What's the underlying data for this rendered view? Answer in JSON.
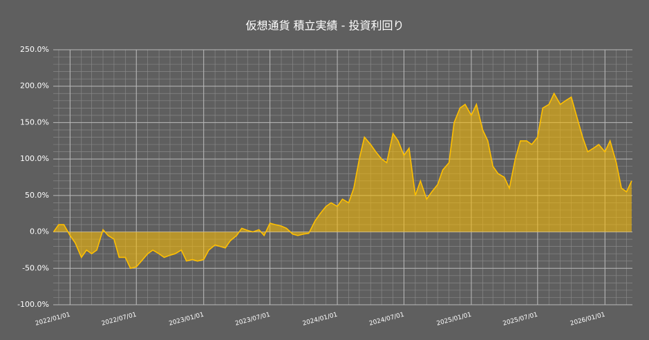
{
  "chart_data": {
    "type": "area",
    "title": "仮想通貨 積立実績 - 投資利回り",
    "color": "#ffc000",
    "fill": "rgba(255,192,0,0.55)",
    "grid": true,
    "xlim": [
      "2021/11/16",
      "2026/03/17"
    ],
    "xticks": [
      "2022/01/01",
      "2022/07/01",
      "2023/01/01",
      "2023/07/01",
      "2024/01/01",
      "2024/07/01",
      "2025/01/01",
      "2025/07/01",
      "2026/01/01"
    ],
    "ylim": [
      -100,
      250
    ],
    "yticks": [
      {
        "value": -100,
        "label": "-100.0%"
      },
      {
        "value": -50,
        "label": "-50.0%"
      },
      {
        "value": 0,
        "label": "0.0%"
      },
      {
        "value": 50,
        "label": "50.0%"
      },
      {
        "value": 100,
        "label": "100.0%"
      },
      {
        "value": 150,
        "label": "150.0%"
      },
      {
        "value": 200,
        "label": "200.0%"
      },
      {
        "value": 250,
        "label": "250.0%"
      }
    ],
    "x": [
      "2021/11/17",
      "2021/12/01",
      "2021/12/15",
      "2022/01/01",
      "2022/01/15",
      "2022/02/01",
      "2022/02/15",
      "2022/03/01",
      "2022/03/15",
      "2022/04/01",
      "2022/04/15",
      "2022/05/01",
      "2022/05/15",
      "2022/06/01",
      "2022/06/15",
      "2022/07/01",
      "2022/07/15",
      "2022/08/01",
      "2022/08/15",
      "2022/09/01",
      "2022/09/15",
      "2022/10/01",
      "2022/10/15",
      "2022/11/01",
      "2022/11/15",
      "2022/12/01",
      "2022/12/15",
      "2023/01/01",
      "2023/01/15",
      "2023/02/01",
      "2023/02/15",
      "2023/03/01",
      "2023/03/15",
      "2023/04/01",
      "2023/04/15",
      "2023/05/01",
      "2023/05/15",
      "2023/06/01",
      "2023/06/15",
      "2023/07/01",
      "2023/07/15",
      "2023/08/01",
      "2023/08/15",
      "2023/09/01",
      "2023/09/15",
      "2023/10/01",
      "2023/10/15",
      "2023/11/01",
      "2023/11/15",
      "2023/12/01",
      "2023/12/15",
      "2024/01/01",
      "2024/01/15",
      "2024/02/01",
      "2024/02/15",
      "2024/03/01",
      "2024/03/15",
      "2024/04/01",
      "2024/04/15",
      "2024/05/01",
      "2024/05/15",
      "2024/06/01",
      "2024/06/15",
      "2024/07/01",
      "2024/07/15",
      "2024/08/01",
      "2024/08/15",
      "2024/09/01",
      "2024/09/15",
      "2024/10/01",
      "2024/10/15",
      "2024/11/01",
      "2024/11/15",
      "2024/12/01",
      "2024/12/15",
      "2025/01/01",
      "2025/01/15",
      "2025/02/01",
      "2025/02/15",
      "2025/03/01",
      "2025/03/15",
      "2025/04/01",
      "2025/04/15",
      "2025/05/01",
      "2025/05/15",
      "2025/06/01",
      "2025/06/15",
      "2025/07/01",
      "2025/07/15",
      "2025/08/01",
      "2025/08/15",
      "2025/09/01",
      "2025/09/15",
      "2025/10/01",
      "2025/10/15",
      "2025/11/01",
      "2025/11/15",
      "2025/12/01",
      "2025/12/15",
      "2026/01/01",
      "2026/01/15",
      "2026/02/01",
      "2026/02/15",
      "2026/03/01",
      "2026/03/15"
    ],
    "values": [
      0,
      10,
      10,
      -5,
      -15,
      -35,
      -25,
      -30,
      -25,
      3,
      -5,
      -10,
      -35,
      -35,
      -50,
      -48,
      -40,
      -30,
      -25,
      -30,
      -35,
      -32,
      -30,
      -25,
      -40,
      -38,
      -40,
      -38,
      -25,
      -18,
      -20,
      -22,
      -12,
      -5,
      5,
      2,
      0,
      3,
      -5,
      12,
      10,
      8,
      5,
      -3,
      -5,
      -3,
      -2,
      15,
      25,
      35,
      40,
      35,
      45,
      40,
      60,
      100,
      130,
      120,
      110,
      100,
      95,
      135,
      125,
      105,
      115,
      50,
      70,
      45,
      55,
      65,
      85,
      95,
      150,
      170,
      175,
      160,
      175,
      140,
      125,
      90,
      80,
      75,
      60,
      100,
      125,
      125,
      120,
      130,
      170,
      175,
      190,
      175,
      180,
      185,
      160,
      130,
      110,
      115,
      120,
      110,
      125,
      95,
      60,
      55,
      70
    ]
  }
}
